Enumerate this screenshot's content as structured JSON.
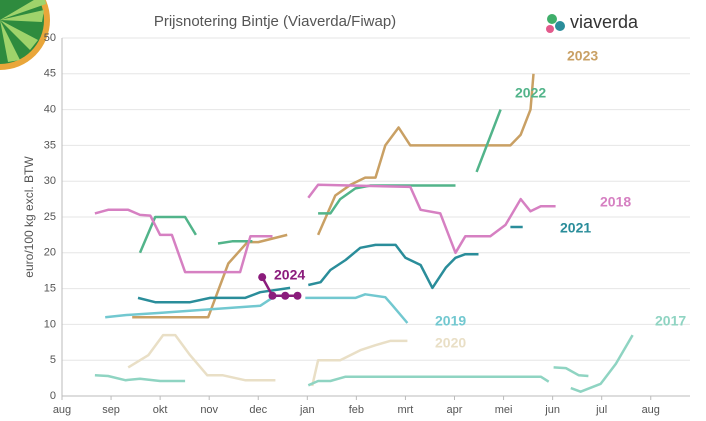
{
  "brand": "viaverda",
  "chart_data": {
    "type": "line",
    "title": "Prijsnotering Bintje (Viaverda/Fiwap)",
    "y_label": "euro/100 kg excl. BTW",
    "xlim": [
      0,
      12.8
    ],
    "ylim": [
      0,
      50
    ],
    "grid": true,
    "xticks": [
      {
        "value": 0,
        "label": "aug"
      },
      {
        "value": 1,
        "label": "sep"
      },
      {
        "value": 2,
        "label": "okt"
      },
      {
        "value": 3,
        "label": "nov"
      },
      {
        "value": 4,
        "label": "dec"
      },
      {
        "value": 5,
        "label": "jan"
      },
      {
        "value": 6,
        "label": "feb"
      },
      {
        "value": 7,
        "label": "mrt"
      },
      {
        "value": 8,
        "label": "apr"
      },
      {
        "value": 9,
        "label": "mei"
      },
      {
        "value": 10,
        "label": "jun"
      },
      {
        "value": 11,
        "label": "jul"
      },
      {
        "value": 12,
        "label": "aug"
      }
    ],
    "yticks": [
      0,
      5,
      10,
      15,
      20,
      25,
      30,
      35,
      40,
      45,
      50
    ],
    "series": [
      {
        "name": "2023",
        "color": "#c9a064",
        "x": [
          1.43,
          2.98,
          3.39,
          3.78,
          4.0,
          4.59,
          null,
          5.22,
          5.57,
          5.88,
          6.18,
          6.39,
          6.59,
          6.86,
          7.1,
          9.14,
          9.35,
          9.55,
          9.61
        ],
        "values": [
          11,
          11,
          18.5,
          21.5,
          21.5,
          22.5,
          null,
          22.5,
          28,
          29.5,
          30.5,
          30.5,
          35,
          37.5,
          35,
          35,
          36.5,
          40,
          45
        ]
      },
      {
        "name": "2022",
        "color": "#52b48a",
        "x": [
          1.59,
          1.9,
          2.1,
          2.51,
          2.73,
          null,
          3.18,
          3.47,
          3.88,
          null,
          5.22,
          5.47,
          5.67,
          5.98,
          6.29,
          8.02,
          null,
          8.45,
          8.94
        ],
        "values": [
          20,
          25,
          25,
          25,
          22.5,
          null,
          21.3,
          21.6,
          21.6,
          null,
          25.5,
          25.5,
          27.5,
          29,
          29.4,
          29.4,
          null,
          31.3,
          40
        ]
      },
      {
        "name": "2018",
        "color": "#d680c2",
        "x": [
          0.67,
          0.94,
          1.35,
          1.59,
          1.8,
          2.0,
          2.24,
          2.51,
          3.63,
          3.84,
          4.29,
          null,
          5.02,
          5.22,
          7.1,
          7.31,
          7.71,
          8.02,
          8.22,
          8.73,
          9.04,
          9.35,
          9.55,
          9.76,
          10.06
        ],
        "values": [
          25.5,
          26,
          26,
          25.3,
          25.2,
          22.5,
          22.5,
          17.3,
          17.3,
          22.3,
          22.3,
          null,
          27.7,
          29.5,
          29.2,
          26,
          25.5,
          20,
          22.3,
          22.3,
          23.9,
          27.5,
          25.8,
          26.5,
          26.5
        ]
      },
      {
        "name": "2021",
        "color": "#2a8d9a",
        "x": [
          1.55,
          1.9,
          2.61,
          3.02,
          3.73,
          4.04,
          4.65,
          null,
          5.02,
          5.27,
          5.47,
          5.78,
          6.08,
          6.39,
          6.8,
          7.0,
          7.31,
          7.55,
          7.82,
          8.02,
          8.22,
          8.49,
          null,
          9.14,
          9.39
        ],
        "values": [
          13.7,
          13.1,
          13.1,
          13.7,
          13.7,
          14.5,
          15.1,
          null,
          15.5,
          15.9,
          17.6,
          19,
          20.7,
          21.1,
          21.1,
          19.3,
          18.3,
          15.1,
          17.9,
          19.3,
          19.8,
          19.8,
          null,
          23.6,
          23.6
        ]
      },
      {
        "name": "2019",
        "color": "#72c8d0",
        "x": [
          0.88,
          1.29,
          2.0,
          4.04,
          4.35,
          null,
          4.96,
          5.98,
          6.18,
          6.59,
          6.73,
          7.04
        ],
        "values": [
          11,
          11.3,
          11.6,
          12.6,
          14,
          null,
          13.7,
          13.7,
          14.2,
          13.8,
          12.7,
          10.2
        ]
      },
      {
        "name": "2020",
        "color": "#e9dfc6",
        "x": [
          1.35,
          1.76,
          2.06,
          2.31,
          2.61,
          2.96,
          3.27,
          3.73,
          4.35,
          null,
          5.1,
          5.22,
          5.67,
          6.08,
          6.39,
          6.69,
          7.04
        ],
        "values": [
          4,
          5.7,
          8.5,
          8.5,
          5.7,
          2.9,
          2.9,
          2.2,
          2.2,
          null,
          1.4,
          5,
          5,
          6.4,
          7.1,
          7.7,
          7.7
        ]
      },
      {
        "name": "2017",
        "color": "#8fd4c2",
        "x": [
          0.67,
          0.94,
          1.29,
          1.59,
          2.0,
          2.51,
          null,
          5.02,
          5.22,
          5.47,
          5.78,
          9.76,
          9.92,
          null,
          10.02,
          10.27,
          10.53,
          10.73,
          null,
          10.37,
          10.57,
          10.98,
          11.29,
          11.63
        ],
        "values": [
          2.9,
          2.8,
          2.2,
          2.4,
          2.1,
          2.1,
          null,
          1.5,
          2.1,
          2.1,
          2.7,
          2.7,
          2,
          null,
          4,
          3.9,
          2.9,
          2.8,
          null,
          1.1,
          0.6,
          1.7,
          4.5,
          8.5
        ]
      },
      {
        "name": "2024",
        "color": "#8b1c7c",
        "markers": true,
        "x": [
          4.08,
          4.29,
          4.55,
          4.8
        ],
        "values": [
          16.6,
          14,
          14,
          14
        ]
      }
    ]
  }
}
